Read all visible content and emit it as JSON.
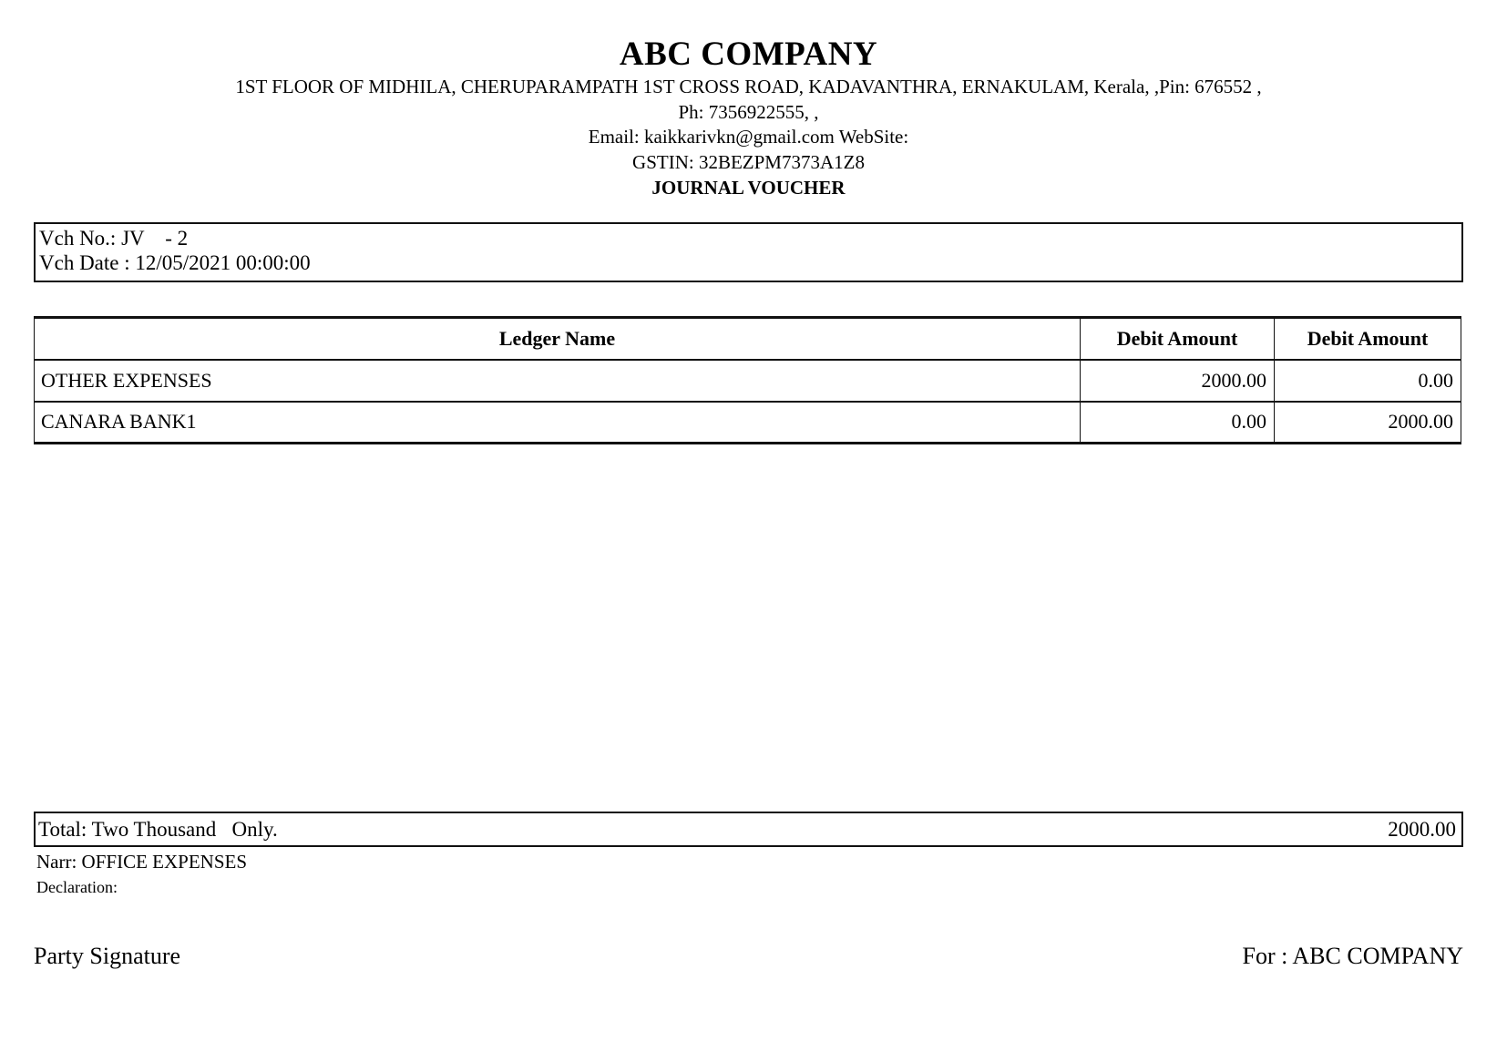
{
  "header": {
    "company_name": "ABC COMPANY",
    "address_line": "1ST FLOOR OF MIDHILA, CHERUPARAMPATH 1ST CROSS ROAD, KADAVANTHRA, ERNAKULAM, Kerala, ,Pin: 676552 ,",
    "phone_line": "Ph: 7356922555, ,",
    "email_line": "Email: kaikkarivkn@gmail.com WebSite:",
    "gstin_line": "GSTIN: 32BEZPM7373A1Z8",
    "doc_type": "JOURNAL VOUCHER"
  },
  "voucher_info": {
    "vch_no_line": "Vch No.: JV    - 2",
    "vch_date_line": "Vch Date : 12/05/2021 00:00:00"
  },
  "table": {
    "headers": [
      "Ledger Name",
      "Debit Amount",
      "Debit Amount"
    ],
    "rows": [
      {
        "ledger": "OTHER EXPENSES",
        "debit": "2000.00",
        "credit": "0.00"
      },
      {
        "ledger": "CANARA BANK1",
        "debit": "0.00",
        "credit": "2000.00"
      }
    ]
  },
  "total": {
    "words": "Total: Two Thousand   Only.",
    "amount": "2000.00"
  },
  "narration": "Narr: OFFICE EXPENSES",
  "declaration_label": "Declaration:",
  "footer": {
    "party_signature": "Party Signature",
    "for_company": "For : ABC COMPANY"
  },
  "colors": {
    "text": "#000000",
    "border": "#111111",
    "background": "#ffffff"
  }
}
